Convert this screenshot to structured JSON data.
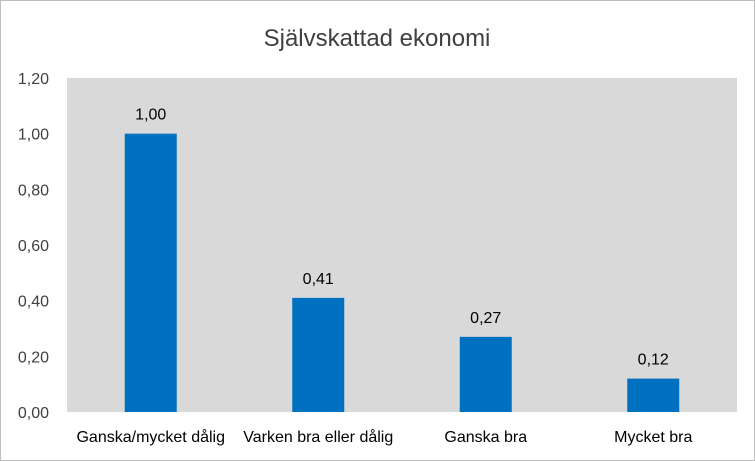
{
  "chart_data": {
    "type": "bar",
    "title": "Självskattad ekonomi",
    "categories": [
      "Ganska/mycket dålig",
      "Varken bra eller dålig",
      "Ganska bra",
      "Mycket bra"
    ],
    "values": [
      1.0,
      0.41,
      0.27,
      0.12
    ],
    "data_labels": [
      "1,00",
      "0,41",
      "0,27",
      "0,12"
    ],
    "ylim": [
      0,
      1.2
    ],
    "y_ticks": [
      0,
      0.2,
      0.4,
      0.6,
      0.8,
      1.0,
      1.2
    ],
    "y_tick_labels": [
      "0,00",
      "0,20",
      "0,40",
      "0,60",
      "0,80",
      "1,00",
      "1,20"
    ],
    "xlabel": "",
    "ylabel": "",
    "grid": false,
    "legend": "none",
    "colors": {
      "bar": "#0070c0",
      "plot_background": "#d9d9d9",
      "chart_background": "#ffffff",
      "text": "#404040"
    }
  }
}
